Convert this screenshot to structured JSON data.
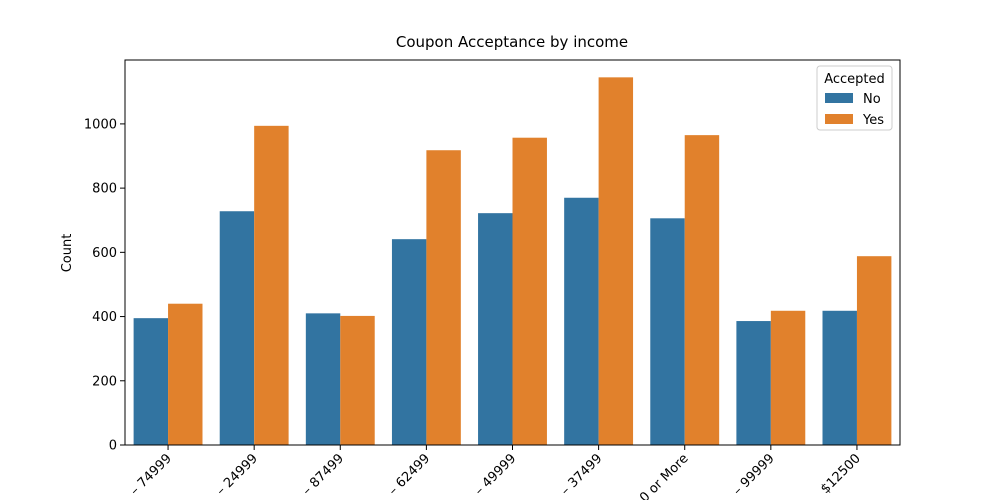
{
  "chart_data": {
    "type": "bar",
    "title": "Coupon Acceptance by income",
    "y_label": "Count",
    "categories": [
      "– 74999",
      "– 24999",
      "– 87499",
      "– 62499",
      "– 49999",
      "– 37499",
      "0 or More",
      "– 99999",
      "$12500"
    ],
    "series": [
      {
        "name": "No",
        "color": "#3274a1",
        "values": [
          395,
          728,
          410,
          641,
          722,
          770,
          706,
          386,
          418
        ]
      },
      {
        "name": "Yes",
        "color": "#e1812c",
        "values": [
          440,
          994,
          402,
          918,
          957,
          1145,
          965,
          418,
          588
        ]
      }
    ],
    "ylim": [
      0,
      1199
    ],
    "yticks": [
      0,
      200,
      400,
      600,
      800,
      1000
    ],
    "legend_title": "Accepted",
    "legend": "upper right"
  }
}
